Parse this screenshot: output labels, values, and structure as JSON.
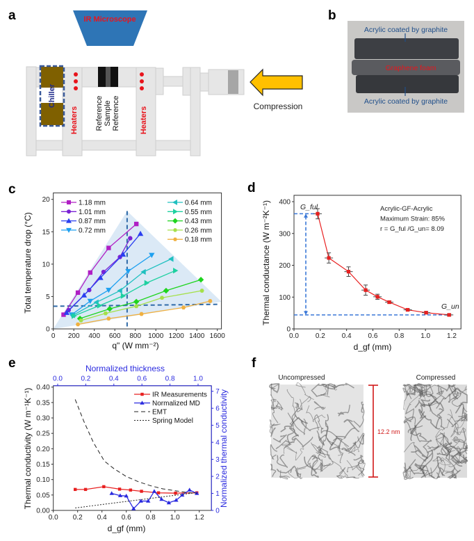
{
  "panel_labels": {
    "a": "a",
    "b": "b",
    "c": "c",
    "d": "d",
    "e": "e",
    "f": "f"
  },
  "panel_a": {
    "microscope": "IR Microscope",
    "chiller": "Chiller",
    "heaters_left": "Heaters",
    "heaters_right": "Heaters",
    "stack": [
      "Reference",
      "Sample",
      "Reference"
    ],
    "compression": "Compression",
    "colors": {
      "microscope": "#2e75b6",
      "label_red": "#e8141c",
      "chiller": "#7f6000",
      "arrow": "#ffc000"
    }
  },
  "panel_b": {
    "top_label": "Acrylic coated by graphite",
    "middle_label": "Graphene foam",
    "bottom_label": "Acrylic coated by graphite"
  },
  "panel_f": {
    "left_title": "Uncompressed",
    "right_title": "Compressed",
    "scale_label": "12.2 nm"
  },
  "chart_data": [
    {
      "id": "c",
      "type": "line",
      "xlabel": "q\" (W mm⁻²)",
      "ylabel": "Total temperature drop (°C)",
      "xlim": [
        0,
        1600
      ],
      "ylim": [
        0,
        20
      ],
      "xticks": [
        0,
        200,
        400,
        600,
        800,
        1000,
        1200,
        1400,
        1600
      ],
      "yticks": [
        0,
        5,
        10,
        15,
        20
      ],
      "legend": "top (two columns)",
      "reference_lines": {
        "x": 720,
        "y": 3.5
      },
      "series": [
        {
          "name": "1.18 mm",
          "color": "#b01fc4",
          "marker": "square",
          "x": [
            100,
            240,
            360,
            540,
            810
          ],
          "y": [
            2.2,
            5.6,
            8.7,
            12.5,
            16.2
          ]
        },
        {
          "name": "1.01 mm",
          "color": "#7a22d4",
          "marker": "circle",
          "x": [
            150,
            350,
            490,
            650,
            750
          ],
          "y": [
            2.9,
            6.0,
            8.8,
            11.1,
            14.0
          ]
        },
        {
          "name": "0.87 mm",
          "color": "#2a3ff0",
          "marker": "triangle-up",
          "x": [
            130,
            300,
            460,
            680,
            850
          ],
          "y": [
            2.5,
            5.2,
            7.9,
            11.5,
            14.7
          ]
        },
        {
          "name": "0.72 mm",
          "color": "#1ea0f0",
          "marker": "triangle-down",
          "x": [
            180,
            360,
            540,
            730,
            960
          ],
          "y": [
            2.2,
            4.3,
            6.0,
            8.9,
            11.4
          ]
        },
        {
          "name": "0.64 mm",
          "color": "#20c0c0",
          "marker": "triangle-left",
          "x": [
            190,
            420,
            650,
            880,
            1150
          ],
          "y": [
            2.1,
            4.1,
            5.9,
            8.8,
            10.8
          ]
        },
        {
          "name": "0.55 mm",
          "color": "#1ed0a0",
          "marker": "triangle-right",
          "x": [
            200,
            450,
            680,
            910,
            1190
          ],
          "y": [
            2.0,
            3.6,
            5.1,
            7.1,
            9.0
          ]
        },
        {
          "name": "0.43 mm",
          "color": "#1ed41e",
          "marker": "diamond",
          "x": [
            260,
            550,
            810,
            1100,
            1440
          ],
          "y": [
            1.6,
            3.1,
            4.2,
            5.9,
            7.6
          ]
        },
        {
          "name": "0.26 mm",
          "color": "#a4e04a",
          "marker": "hexagon",
          "x": [
            270,
            510,
            810,
            1060,
            1450
          ],
          "y": [
            1.3,
            2.4,
            3.5,
            4.8,
            5.9
          ]
        },
        {
          "name": "0.18 mm",
          "color": "#f0b040",
          "marker": "hexagon",
          "x": [
            240,
            540,
            860,
            1270,
            1530
          ],
          "y": [
            0.7,
            1.6,
            2.3,
            3.3,
            4.3
          ]
        }
      ]
    },
    {
      "id": "d",
      "type": "line",
      "xlabel": "d_gf (mm)",
      "ylabel": "Thermal conductance (W m⁻²K⁻¹)",
      "xlim": [
        0,
        1.2
      ],
      "ylim": [
        0,
        400
      ],
      "xticks": [
        0.0,
        0.2,
        0.4,
        0.6,
        0.8,
        1.0,
        1.2
      ],
      "yticks": [
        0,
        100,
        200,
        300,
        400
      ],
      "annotations": [
        "Acrylic-GF-Acrylic",
        "Maximum Strain: 85%",
        "r = G_ful /G_un= 8.09"
      ],
      "g_ful_label": "G_ful",
      "g_un_label": "G_un",
      "series": [
        {
          "color": "#e82020",
          "x": [
            0.18,
            0.265,
            0.415,
            0.545,
            0.635,
            0.725,
            0.865,
            1.005,
            1.18
          ],
          "y": [
            362,
            223,
            180,
            122,
            101,
            84,
            60,
            51,
            44
          ],
          "yerr": [
            16,
            16,
            15,
            16,
            8,
            4,
            3,
            4,
            3
          ]
        }
      ]
    },
    {
      "id": "e",
      "type": "line",
      "xlabel": "d_gf (mm)",
      "ylabel": "Thermal conductivity (W m⁻¹K⁻¹)",
      "y2label": "Normalized thermal conductivity",
      "x2label": "Normalized thickness",
      "xlim": [
        0,
        1.2
      ],
      "ylim": [
        0,
        0.4
      ],
      "y2lim": [
        0,
        7
      ],
      "x2lim": [
        0,
        1.0
      ],
      "xticks": [
        0.0,
        0.2,
        0.4,
        0.6,
        0.8,
        1.0,
        1.2
      ],
      "yticks": [
        0.0,
        0.05,
        0.1,
        0.15,
        0.2,
        0.25,
        0.3,
        0.35,
        0.4
      ],
      "y2ticks": [
        0,
        1,
        2,
        3,
        4,
        5,
        6,
        7
      ],
      "x2ticks": [
        0.0,
        0.2,
        0.4,
        0.6,
        0.8,
        1.0
      ],
      "legend": "top-right",
      "series": [
        {
          "name": "IR Measurements",
          "color": "#e82020",
          "axis": "left",
          "x": [
            0.18,
            0.265,
            0.415,
            0.545,
            0.635,
            0.725,
            0.865,
            1.005,
            1.18
          ],
          "y": [
            0.068,
            0.068,
            0.077,
            0.069,
            0.066,
            0.062,
            0.057,
            0.056,
            0.057
          ]
        },
        {
          "name": "Normalized MD",
          "color": "#2a2adf",
          "axis": "right",
          "x": [
            0.48,
            0.55,
            0.6,
            0.66,
            0.72,
            0.78,
            0.83,
            0.89,
            0.95,
            1.01,
            1.06,
            1.12,
            1.18
          ],
          "y": [
            1.0,
            0.87,
            0.85,
            0.1,
            0.55,
            0.55,
            1.12,
            0.65,
            0.45,
            0.6,
            0.9,
            1.2,
            1.0
          ]
        },
        {
          "name": "EMT",
          "color": "#222222",
          "axis": "left",
          "style": "dashed",
          "x": [
            0.18,
            0.25,
            0.33,
            0.42,
            0.5,
            0.6,
            0.7,
            0.8,
            0.9,
            1.0,
            1.1,
            1.18
          ],
          "y": [
            0.36,
            0.29,
            0.22,
            0.16,
            0.135,
            0.11,
            0.093,
            0.08,
            0.07,
            0.064,
            0.058,
            0.055
          ]
        },
        {
          "name": "Spring Model",
          "color": "#222222",
          "axis": "left",
          "style": "dotted",
          "x": [
            0.18,
            1.18
          ],
          "y": [
            0.008,
            0.058
          ]
        }
      ]
    }
  ]
}
